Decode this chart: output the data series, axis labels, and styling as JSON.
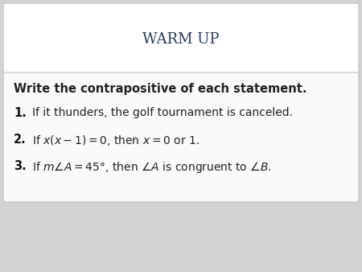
{
  "title": "WARM UP",
  "title_color": "#2b3a5a",
  "title_fontsize": 13,
  "background_outer": "#d3d3d3",
  "background_title": "#ffffff",
  "background_content": "#f5f5f5",
  "border_color": "#c0c0c0",
  "heading": "Write the contrapositive of each statement.",
  "heading_fontsize": 10.5,
  "item_numbers": [
    "1.",
    "2.",
    "3."
  ],
  "item1": "If it thunders, the golf tournament is canceled.",
  "item_fontsize": 10,
  "text_color": "#222222",
  "num_color": "#111111"
}
